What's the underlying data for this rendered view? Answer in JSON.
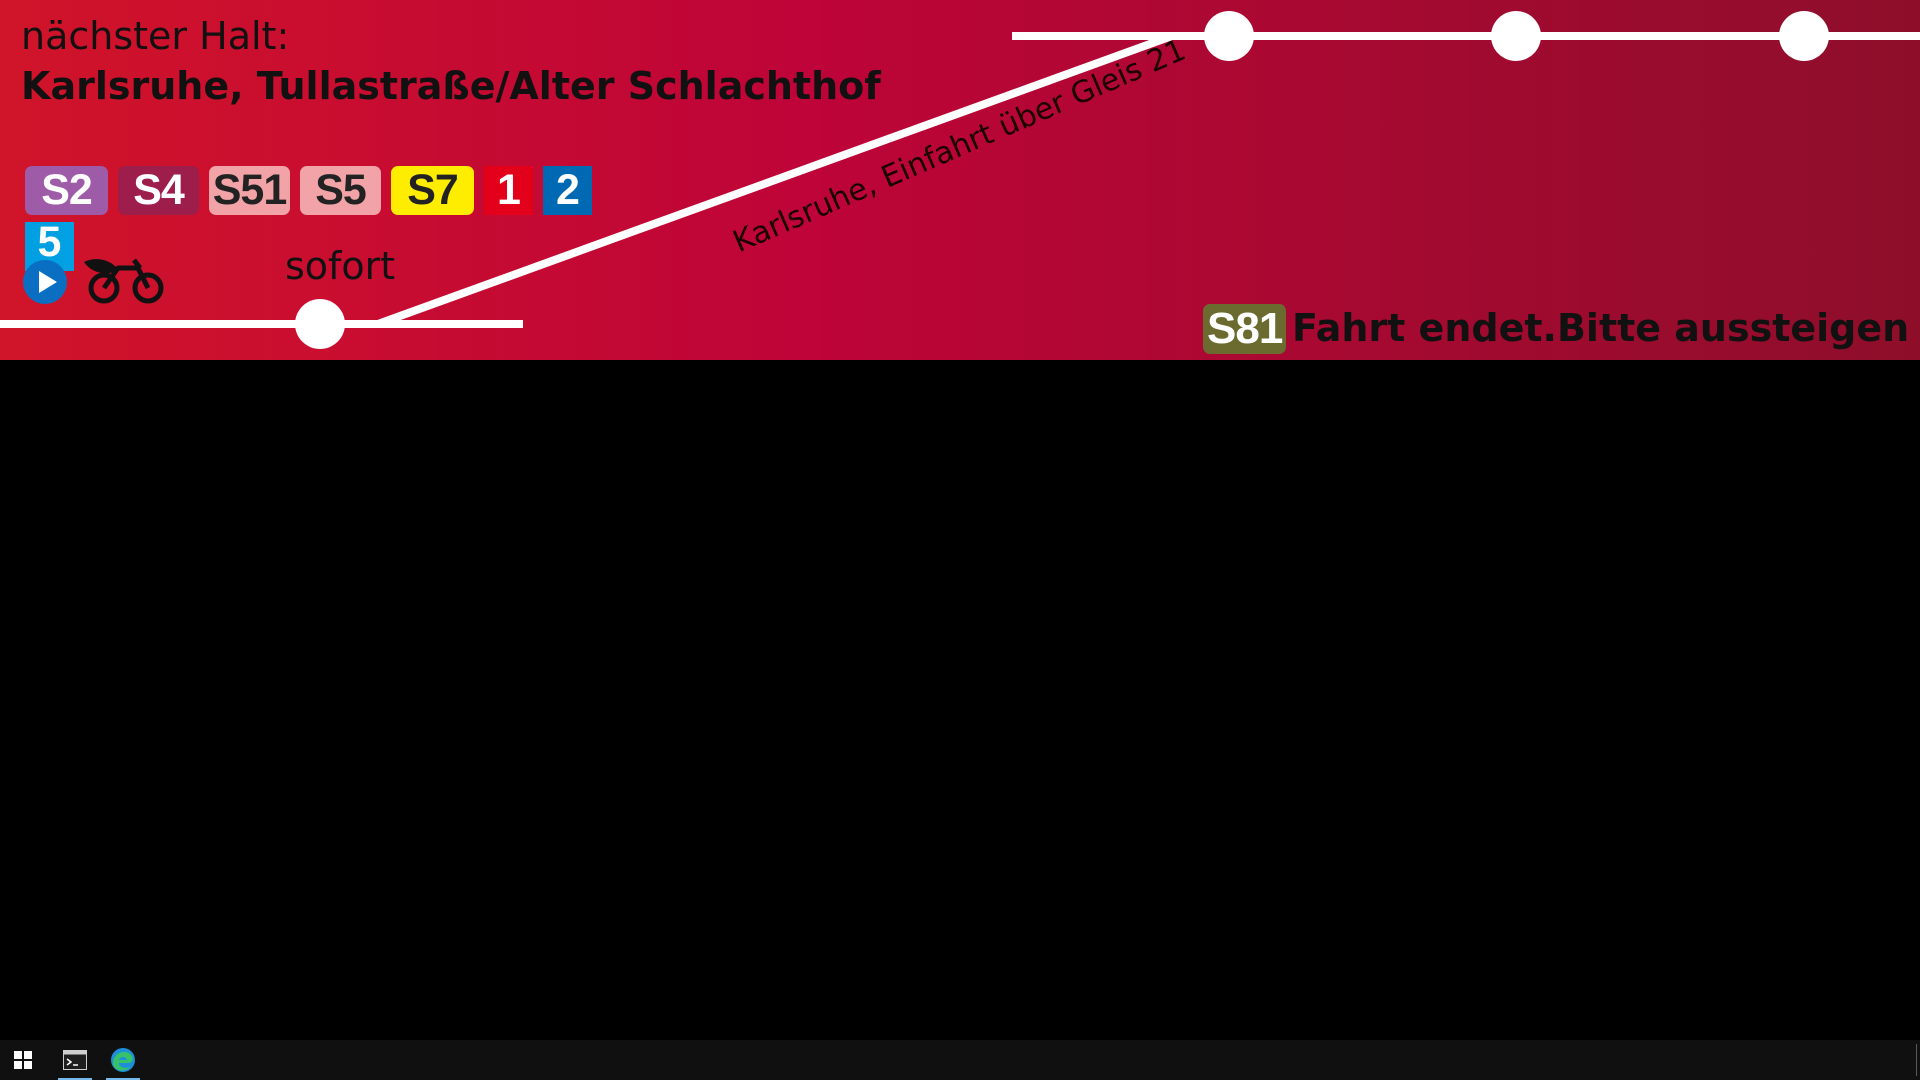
{
  "colors": {
    "banner_gradient_start": "#d0142a",
    "banner_gradient_mid": "#be0438",
    "banner_gradient_end": "#8e0e2a",
    "route_line": "#ffffff",
    "text": "#111111",
    "taskbar": "#101010"
  },
  "header": {
    "next_stop_label": "nächster Halt:",
    "next_stop_name": "Karlsruhe, Tullastraße/Alter Schlachthof"
  },
  "lines": [
    {
      "label": "S2",
      "bg": "#9e5ba8",
      "fg": "#ffffff",
      "kind": "s"
    },
    {
      "label": "S4",
      "bg": "#9d1d4b",
      "fg": "#ffffff",
      "kind": "s"
    },
    {
      "label": "S51",
      "bg": "#f1a3a8",
      "fg": "#222222",
      "kind": "s"
    },
    {
      "label": "S5",
      "bg": "#f1a3a8",
      "fg": "#222222",
      "kind": "s"
    },
    {
      "label": "S7",
      "bg": "#ffed00",
      "fg": "#222222",
      "kind": "s"
    },
    {
      "label": "1",
      "bg": "#e3001b",
      "fg": "#ffffff",
      "kind": "tram"
    },
    {
      "label": "2",
      "bg": "#0069b4",
      "fg": "#ffffff",
      "kind": "tram"
    }
  ],
  "line_5": {
    "label": "5",
    "bg": "#00a0e3",
    "fg": "#ffffff"
  },
  "icons": {
    "play": "play-circle-icon",
    "bike": "bicycle-icon",
    "windows": "windows-start-icon",
    "terminal": "terminal-icon",
    "edge": "edge-browser-icon"
  },
  "current_stop": {
    "time_label": "sofort"
  },
  "route": {
    "platform_label": "Karlsruhe, Einfahrt über Gleis 21"
  },
  "status": {
    "line_badge": "S81",
    "line_badge_bg": "#6b6b2f",
    "line_badge_fg": "#ffffff",
    "message": "Fahrt endet.Bitte aussteigen"
  },
  "taskbar": {
    "items": [
      {
        "name": "start-button",
        "active": false
      },
      {
        "name": "terminal-app",
        "active": true
      },
      {
        "name": "edge-app",
        "active": true
      }
    ]
  }
}
